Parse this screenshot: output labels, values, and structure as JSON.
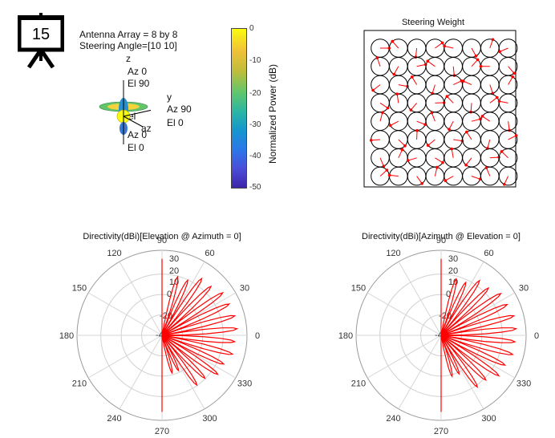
{
  "badge": {
    "number": "15"
  },
  "pattern3d": {
    "info_line1": "Antenna Array = 8 by 8",
    "info_line2": "Steering Angle=[10 10]",
    "axis_z": "z",
    "axis_y": "y",
    "label_az0_el90": [
      "Az 0",
      "El 90"
    ],
    "label_az90_el0": [
      "Az 90",
      "El 0"
    ],
    "label_el": "el",
    "label_az": "az",
    "label_az0_el0": [
      "Az 0",
      "El 0"
    ]
  },
  "colorbar": {
    "label": "Normalized Power (dB)",
    "ticks": [
      "0",
      "-10",
      "-20",
      "-30",
      "-40",
      "-50"
    ],
    "colors": [
      "#f9fb0e",
      "#61c66c",
      "#1696cf",
      "#3e26a8"
    ]
  },
  "steering": {
    "title": "Steering Weight",
    "rows": 8,
    "cols": 8,
    "arrow_color": "#ff0000"
  },
  "chart_data": [
    {
      "type": "polar",
      "title": "Directivity(dBi)[Elevation @ Azimuth = 0]",
      "angle_ticks": [
        "0",
        "30",
        "60",
        "90",
        "120",
        "150",
        "180",
        "210",
        "240",
        "270",
        "300",
        "330"
      ],
      "radial_ticks": [
        "30",
        "20",
        "10",
        "0",
        "-20",
        "-40"
      ],
      "series_color": "#ff0000",
      "series": [
        {
          "angles_deg": [
            -90,
            -80,
            -70,
            -60,
            -50,
            -40,
            -30,
            -20,
            -10,
            0,
            10,
            20,
            30,
            40,
            50,
            60,
            70,
            80,
            90
          ],
          "values_db": [
            -40,
            -40,
            -8,
            -40,
            10,
            -40,
            16,
            -40,
            20,
            -40,
            22,
            -40,
            21,
            -40,
            17,
            -40,
            10,
            -40,
            -40
          ]
        }
      ]
    },
    {
      "type": "polar",
      "title": "Directivity(dBi)[Azimuth @ Elevation = 0]",
      "angle_ticks": [
        "0",
        "30",
        "60",
        "90",
        "120",
        "150",
        "180",
        "210",
        "240",
        "270",
        "300",
        "330"
      ],
      "radial_ticks": [
        "30",
        "20",
        "10",
        "0",
        "-20",
        "-40"
      ],
      "series_color": "#ff0000",
      "series": [
        {
          "angles_deg": [
            -90,
            -80,
            -70,
            -60,
            -50,
            -40,
            -30,
            -20,
            -10,
            0,
            10,
            20,
            30,
            40,
            50,
            60,
            70,
            80,
            90
          ],
          "values_db": [
            -40,
            -40,
            -5,
            -40,
            12,
            -40,
            18,
            -40,
            21,
            -40,
            22,
            -40,
            20,
            -40,
            15,
            -40,
            8,
            -40,
            -40
          ]
        }
      ]
    }
  ]
}
